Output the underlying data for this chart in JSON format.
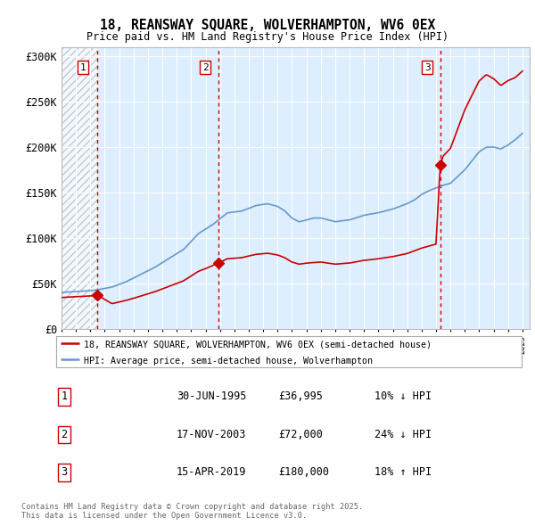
{
  "title_line1": "18, REANSWAY SQUARE, WOLVERHAMPTON, WV6 0EX",
  "title_line2": "Price paid vs. HM Land Registry's House Price Index (HPI)",
  "xlim_start": 1993.0,
  "xlim_end": 2025.5,
  "ylim_min": 0,
  "ylim_max": 310000,
  "yticks": [
    0,
    50000,
    100000,
    150000,
    200000,
    250000,
    300000
  ],
  "ytick_labels": [
    "£0",
    "£50K",
    "£100K",
    "£150K",
    "£200K",
    "£250K",
    "£300K"
  ],
  "sale_dates": [
    1995.5,
    2003.88,
    2019.29
  ],
  "sale_prices": [
    36995,
    72000,
    180000
  ],
  "sale_labels": [
    "1",
    "2",
    "3"
  ],
  "hpi_color": "#6699cc",
  "price_color": "#cc0000",
  "dashed_vline_color": "#cc0000",
  "legend_label_price": "18, REANSWAY SQUARE, WOLVERHAMPTON, WV6 0EX (semi-detached house)",
  "legend_label_hpi": "HPI: Average price, semi-detached house, Wolverhampton",
  "table_rows": [
    [
      "1",
      "30-JUN-1995",
      "£36,995",
      "10% ↓ HPI"
    ],
    [
      "2",
      "17-NOV-2003",
      "£72,000",
      "24% ↓ HPI"
    ],
    [
      "3",
      "15-APR-2019",
      "£180,000",
      "18% ↑ HPI"
    ]
  ],
  "footnote": "Contains HM Land Registry data © Crown copyright and database right 2025.\nThis data is licensed under the Open Government Licence v3.0.",
  "plot_bg_color": "#ddeeff",
  "hatch_end": 1995.5
}
